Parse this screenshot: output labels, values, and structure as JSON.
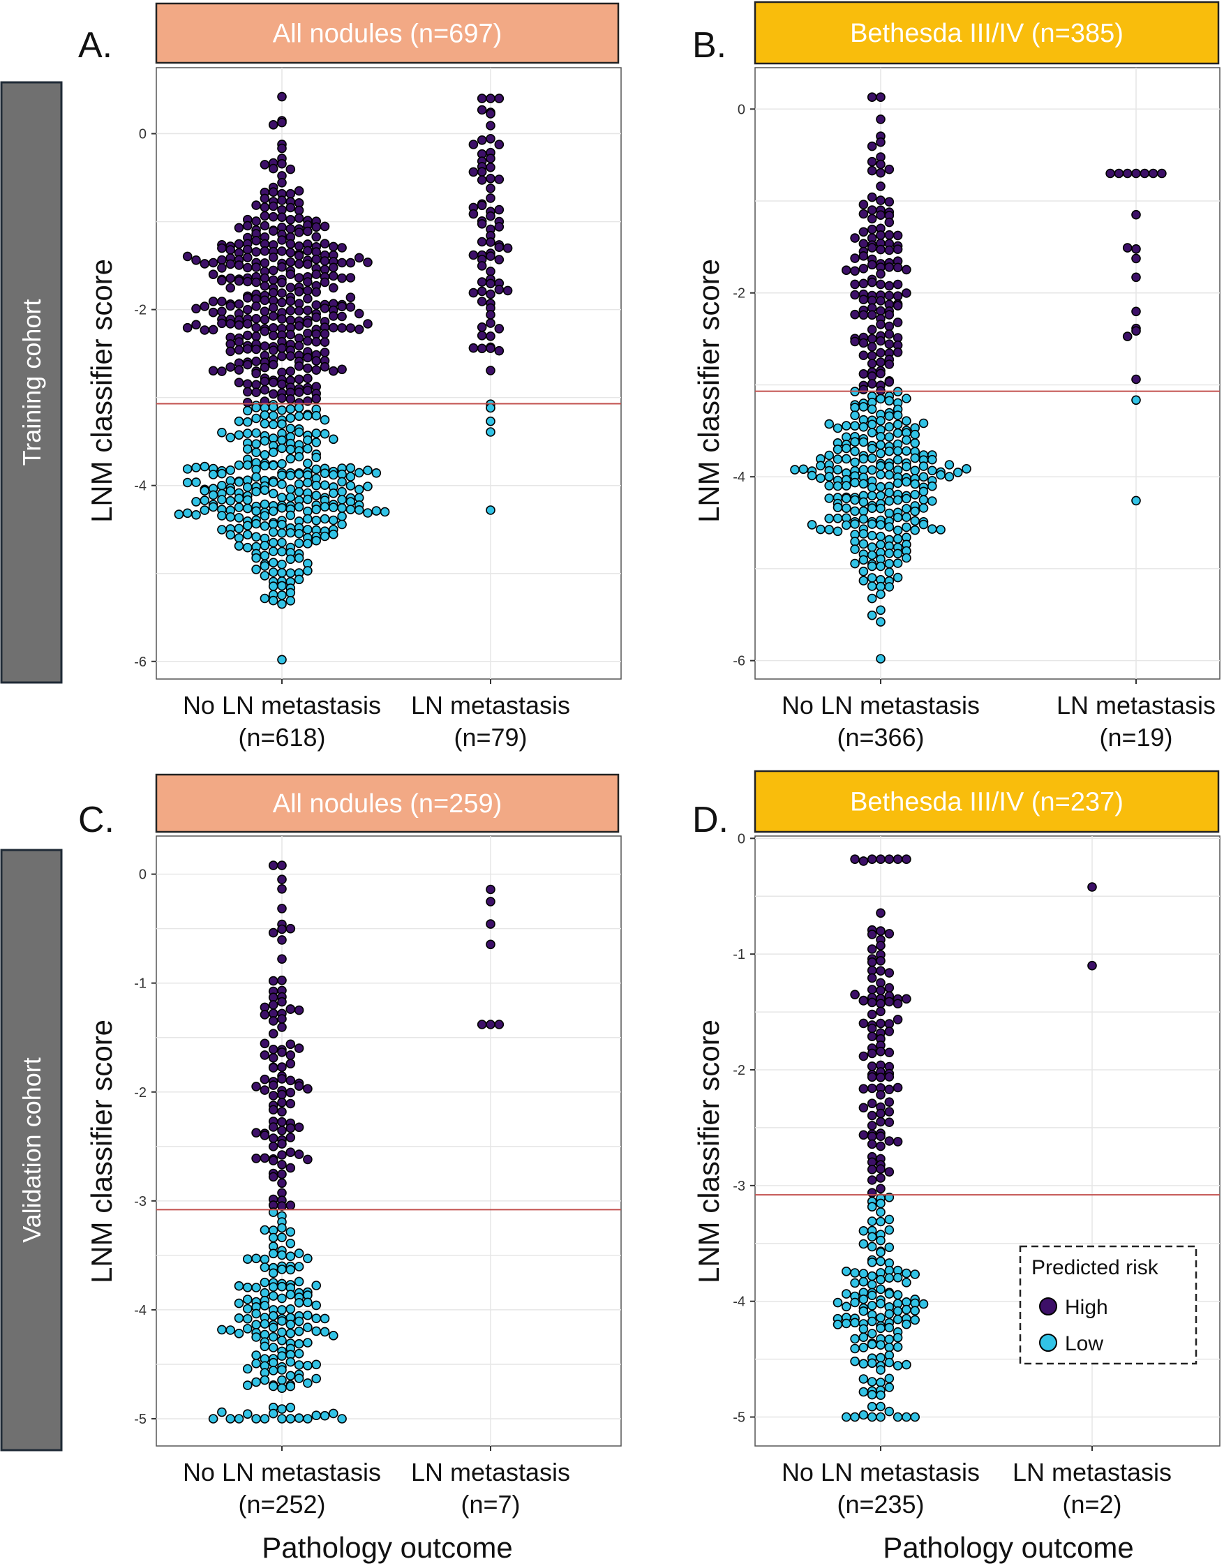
{
  "colors": {
    "high": "#3d1068",
    "low": "#32c3e6",
    "threshold_line": "#c2504e",
    "all_nodules_header": "#f2a985",
    "bethesda_header": "#f9bd0c",
    "cohort_band": "#707070"
  },
  "cohort_labels": {
    "training": "Training cohort",
    "validation": "Validation cohort"
  },
  "shared": {
    "ylabel": "LNM classifier score",
    "xlabel": "Pathology outcome"
  },
  "legend": {
    "title": "Predicted risk",
    "items": [
      {
        "label": "High",
        "color": "#3d1068"
      },
      {
        "label": "Low",
        "color": "#32c3e6"
      }
    ]
  },
  "chart_data": [
    {
      "panel": "A.",
      "type": "scatter",
      "subtype": "beeswarm",
      "title": "All nodules (n=697)",
      "cohort": "Training cohort",
      "ylabel": "LNM classifier score",
      "ylim": [
        -6.2,
        0.75
      ],
      "yticks": [
        0,
        -2,
        -4,
        -6
      ],
      "threshold": -3.07,
      "categories": [
        {
          "name": "No LN metastasis",
          "n_label": "(n=618)",
          "n": 618,
          "min": -5.98,
          "max": 0.42
        },
        {
          "name": "LN metastasis",
          "n_label": "(n=79)",
          "n": 79,
          "min": -4.28,
          "max": 0.4
        }
      ],
      "series": [
        {
          "name": "High"
        },
        {
          "name": "Low"
        }
      ]
    },
    {
      "panel": "B.",
      "type": "scatter",
      "subtype": "beeswarm",
      "title": "Bethesda III/IV (n=385)",
      "cohort": "Training cohort",
      "ylabel": "LNM classifier score",
      "ylim": [
        -6.2,
        0.45
      ],
      "yticks": [
        0,
        -2,
        -4,
        -6
      ],
      "threshold": -3.07,
      "categories": [
        {
          "name": "No LN metastasis",
          "n_label": "(n=366)",
          "n": 366,
          "min": -5.98,
          "max": 0.13
        },
        {
          "name": "LN metastasis",
          "n_label": "(n=19)",
          "n": 19,
          "min": -4.26,
          "max": -0.7
        }
      ],
      "series": [
        {
          "name": "High"
        },
        {
          "name": "Low"
        }
      ]
    },
    {
      "panel": "C.",
      "type": "scatter",
      "subtype": "beeswarm",
      "title": "All nodules (n=259)",
      "cohort": "Validation cohort",
      "ylabel": "LNM classifier score",
      "xlabel": "Pathology outcome",
      "ylim": [
        -5.25,
        0.35
      ],
      "yticks": [
        0,
        -1,
        -2,
        -3,
        -4,
        -5
      ],
      "threshold": -3.08,
      "categories": [
        {
          "name": "No LN metastasis",
          "n_label": "(n=252)",
          "n": 252,
          "min": -5.0,
          "max": 0.08
        },
        {
          "name": "LN metastasis",
          "n_label": "(n=7)",
          "n": 7,
          "min": -1.38,
          "max": -0.14
        }
      ],
      "series": [
        {
          "name": "High"
        },
        {
          "name": "Low"
        }
      ]
    },
    {
      "panel": "D.",
      "type": "scatter",
      "subtype": "beeswarm",
      "title": "Bethesda III/IV (n=237)",
      "cohort": "Validation cohort",
      "ylabel": "LNM classifier score",
      "xlabel": "Pathology outcome",
      "ylim": [
        -5.25,
        0.02
      ],
      "yticks": [
        0,
        -1,
        -2,
        -3,
        -4,
        -5
      ],
      "threshold": -3.08,
      "categories": [
        {
          "name": "No LN metastasis",
          "n_label": "(n=235)",
          "n": 235,
          "min": -5.0,
          "max": -0.18
        },
        {
          "name": "LN metastasis",
          "n_label": "(n=2)",
          "n": 2,
          "min": -1.1,
          "max": -0.42
        }
      ],
      "series": [
        {
          "name": "High"
        },
        {
          "name": "Low"
        }
      ],
      "legend": "inside bottom-right"
    }
  ]
}
